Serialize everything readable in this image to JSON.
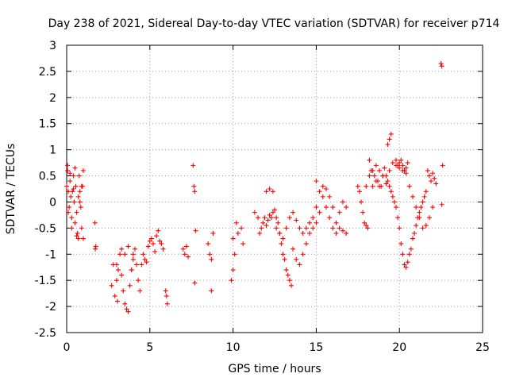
{
  "chart_data": {
    "type": "scatter",
    "title": "Day 238 of 2021, Sidereal Day-to-day VTEC variation (SDTVAR) for receiver p714",
    "xlabel": "GPS time / hours",
    "ylabel": "SDTVAR / TECUs",
    "xlim": [
      0,
      25
    ],
    "ylim": [
      -2.5,
      3
    ],
    "xticks": [
      0,
      5,
      10,
      15,
      20,
      25
    ],
    "xtick_labels": [
      "0",
      "5",
      "10",
      "15",
      "20",
      "25"
    ],
    "yticks": [
      -2.5,
      -2,
      -1.5,
      -1,
      -0.5,
      0,
      0.5,
      1,
      1.5,
      2,
      2.5,
      3
    ],
    "ytick_labels": [
      "-2.5",
      "-2",
      "-1.5",
      "-1",
      "-0.5",
      "0",
      "0.5",
      "1",
      "1.5",
      "2",
      "2.5",
      "3"
    ],
    "grid": true,
    "marker": "+",
    "color": "#ff0000",
    "series": [
      {
        "name": "SDTVAR",
        "x": [
          0.0,
          0.05,
          0.1,
          0.15,
          0.2,
          0.25,
          0.3,
          0.35,
          0.4,
          0.45,
          0.5,
          0.55,
          0.6,
          0.65,
          0.7,
          0.75,
          0.8,
          0.85,
          0.9,
          0.95,
          1.0,
          0.05,
          0.1,
          0.2,
          0.3,
          0.4,
          0.5,
          0.6,
          0.7,
          0.8,
          0.9,
          1.0,
          1.7,
          1.75,
          1.72,
          2.7,
          2.8,
          2.9,
          3.0,
          3.05,
          3.1,
          3.2,
          3.3,
          3.4,
          3.5,
          3.6,
          3.7,
          3.8,
          3.9,
          4.0,
          4.1,
          4.2,
          4.3,
          4.4,
          4.5,
          4.6,
          4.7,
          4.8,
          4.9,
          5.0,
          5.1,
          5.2,
          5.3,
          5.4,
          5.5,
          5.6,
          5.7,
          5.8,
          3.0,
          3.3,
          3.5,
          3.7,
          3.9,
          4.0,
          5.95,
          6.0,
          6.05,
          7.0,
          7.1,
          7.2,
          7.3,
          7.6,
          7.65,
          7.7,
          7.75,
          7.7,
          8.5,
          8.6,
          8.7,
          8.8,
          8.7,
          9.9,
          10.0,
          10.1,
          10.0,
          10.2,
          10.3,
          10.5,
          10.6,
          11.3,
          11.5,
          11.6,
          11.7,
          11.8,
          11.9,
          12.0,
          12.1,
          12.2,
          12.3,
          12.4,
          12.5,
          12.6,
          12.7,
          12.8,
          12.9,
          13.0,
          13.1,
          13.2,
          13.3,
          13.4,
          13.5,
          12.0,
          12.2,
          12.4,
          12.6,
          12.8,
          13.0,
          13.2,
          13.4,
          13.6,
          13.8,
          14.0,
          14.2,
          14.4,
          14.6,
          14.8,
          15.0,
          13.6,
          13.8,
          14.0,
          14.2,
          14.4,
          14.6,
          14.8,
          15.0,
          15.2,
          15.4,
          15.6,
          15.8,
          16.0,
          16.2,
          16.4,
          16.6,
          16.8,
          15.0,
          15.2,
          15.4,
          15.6,
          15.8,
          16.0,
          16.2,
          16.4,
          16.6,
          16.8,
          17.5,
          17.6,
          17.7,
          17.8,
          17.9,
          18.0,
          18.1,
          18.2,
          18.3,
          18.4,
          18.5,
          18.6,
          18.7,
          18.8,
          18.9,
          19.0,
          19.1,
          19.2,
          19.3,
          19.4,
          19.5,
          19.6,
          19.7,
          19.8,
          19.9,
          20.0,
          20.1,
          20.2,
          20.3,
          20.4,
          20.5,
          20.6,
          20.7,
          20.8,
          20.9,
          21.0,
          21.1,
          21.2,
          21.3,
          21.4,
          21.5,
          21.6,
          18.0,
          18.2,
          18.4,
          18.6,
          18.8,
          19.0,
          19.2,
          19.4,
          19.6,
          19.8,
          20.0,
          20.2,
          20.4,
          20.6,
          20.8,
          21.0,
          21.2,
          21.4,
          21.6,
          21.8,
          22.0,
          19.3,
          19.4,
          19.5,
          19.8,
          19.9,
          20.0,
          20.1,
          20.2,
          20.3,
          20.4,
          20.5,
          21.7,
          21.8,
          21.9,
          22.0,
          22.1,
          22.2,
          22.5,
          22.55,
          22.6,
          22.55
        ],
        "y": [
          0.3,
          0.6,
          0.2,
          -0.1,
          0.4,
          0.1,
          -0.3,
          0.2,
          0.5,
          0.0,
          -0.4,
          0.3,
          -0.2,
          -0.6,
          0.1,
          0.5,
          0.2,
          -0.1,
          -0.5,
          0.3,
          0.6,
          0.7,
          -0.2,
          0.55,
          -0.5,
          0.25,
          0.65,
          -0.65,
          -0.7,
          0.0,
          0.3,
          -0.7,
          -0.4,
          -0.85,
          -0.9,
          -1.6,
          -1.2,
          -1.8,
          -1.5,
          -1.9,
          -1.3,
          -1.0,
          -1.4,
          -1.7,
          -1.95,
          -2.05,
          -2.1,
          -1.6,
          -1.3,
          -1.1,
          -0.9,
          -1.2,
          -1.5,
          -1.7,
          -1.2,
          -1.0,
          -1.1,
          -1.15,
          -0.85,
          -0.75,
          -0.7,
          -0.8,
          -0.95,
          -0.65,
          -0.55,
          -0.75,
          -0.8,
          -0.9,
          -1.2,
          -0.9,
          -1.0,
          -0.85,
          -1.3,
          -1.0,
          -1.7,
          -1.8,
          -1.95,
          -0.9,
          -1.0,
          -0.85,
          -1.05,
          0.7,
          0.3,
          0.2,
          -0.55,
          -1.55,
          -0.8,
          -1.0,
          -1.1,
          -0.6,
          -1.7,
          -1.5,
          -1.3,
          -1.0,
          -0.7,
          -0.4,
          -0.6,
          -0.5,
          -0.8,
          -0.2,
          -0.3,
          -0.6,
          -0.5,
          -0.4,
          -0.3,
          -0.45,
          -0.35,
          -0.25,
          -0.3,
          -0.2,
          -0.15,
          -0.3,
          -0.4,
          -0.6,
          -0.8,
          -1.0,
          -1.1,
          -1.3,
          -1.4,
          -1.5,
          -1.6,
          0.2,
          0.25,
          0.2,
          -0.5,
          -0.6,
          -0.7,
          -0.5,
          -0.3,
          -0.2,
          -0.35,
          -0.5,
          -0.6,
          -0.5,
          -0.4,
          -0.3,
          -0.1,
          -0.9,
          -1.1,
          -1.2,
          -1.0,
          -0.8,
          -0.6,
          -0.5,
          -0.4,
          -0.2,
          0.3,
          0.25,
          0.1,
          -0.1,
          -0.4,
          -0.5,
          -0.55,
          -0.6,
          0.4,
          0.2,
          0.1,
          -0.1,
          -0.3,
          -0.5,
          -0.6,
          -0.2,
          0.0,
          -0.1,
          0.3,
          0.2,
          0.0,
          -0.2,
          -0.4,
          -0.45,
          -0.5,
          0.8,
          0.6,
          0.3,
          0.5,
          0.7,
          0.4,
          0.6,
          0.3,
          0.5,
          0.65,
          0.5,
          0.4,
          0.3,
          0.2,
          0.1,
          0.0,
          -0.1,
          -0.3,
          -0.5,
          -0.8,
          -1.0,
          -1.2,
          -1.25,
          -1.15,
          -1.0,
          -0.9,
          -0.7,
          -0.6,
          -0.45,
          -0.3,
          -0.2,
          -0.1,
          0.0,
          0.1,
          0.2,
          0.3,
          0.5,
          0.6,
          0.4,
          0.3,
          0.5,
          0.35,
          0.6,
          0.75,
          0.7,
          0.65,
          0.6,
          0.55,
          0.3,
          0.1,
          -0.1,
          -0.3,
          -0.5,
          -0.45,
          -0.3,
          -0.1,
          1.1,
          1.2,
          1.3,
          0.8,
          0.7,
          0.75,
          0.8,
          0.7,
          0.6,
          0.65,
          0.75,
          0.6,
          0.5,
          0.4,
          0.55,
          0.45,
          0.35,
          2.65,
          2.6,
          0.7,
          -0.05
        ]
      }
    ]
  }
}
